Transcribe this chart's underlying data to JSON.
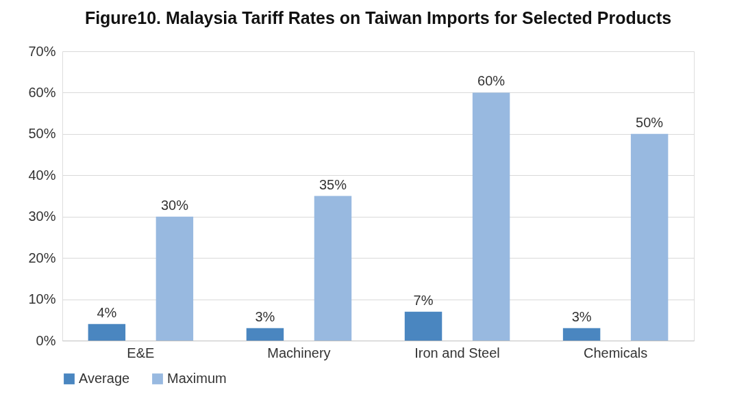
{
  "chart_data": {
    "type": "bar",
    "title": "Figure10. Malaysia Tariff Rates on Taiwan Imports for Selected Products",
    "categories": [
      "E&E",
      "Machinery",
      "Iron and Steel",
      "Chemicals"
    ],
    "series": [
      {
        "name": "Average",
        "color": "#4a86c0",
        "values": [
          4,
          3,
          7,
          3
        ],
        "value_labels": [
          "4%",
          "3%",
          "7%",
          "3%"
        ]
      },
      {
        "name": "Maximum",
        "color": "#98b9e0",
        "values": [
          30,
          35,
          60,
          50
        ],
        "value_labels": [
          "30%",
          "35%",
          "60%",
          "50%"
        ]
      }
    ],
    "ylim": [
      0,
      70
    ],
    "yticks": [
      {
        "value": 0,
        "label": "0%"
      },
      {
        "value": 10,
        "label": "10%"
      },
      {
        "value": 20,
        "label": "20%"
      },
      {
        "value": 30,
        "label": "30%"
      },
      {
        "value": 40,
        "label": "40%"
      },
      {
        "value": 50,
        "label": "50%"
      },
      {
        "value": 60,
        "label": "60%"
      },
      {
        "value": 70,
        "label": "70%"
      }
    ],
    "grid": "y",
    "legend": "bottom"
  }
}
